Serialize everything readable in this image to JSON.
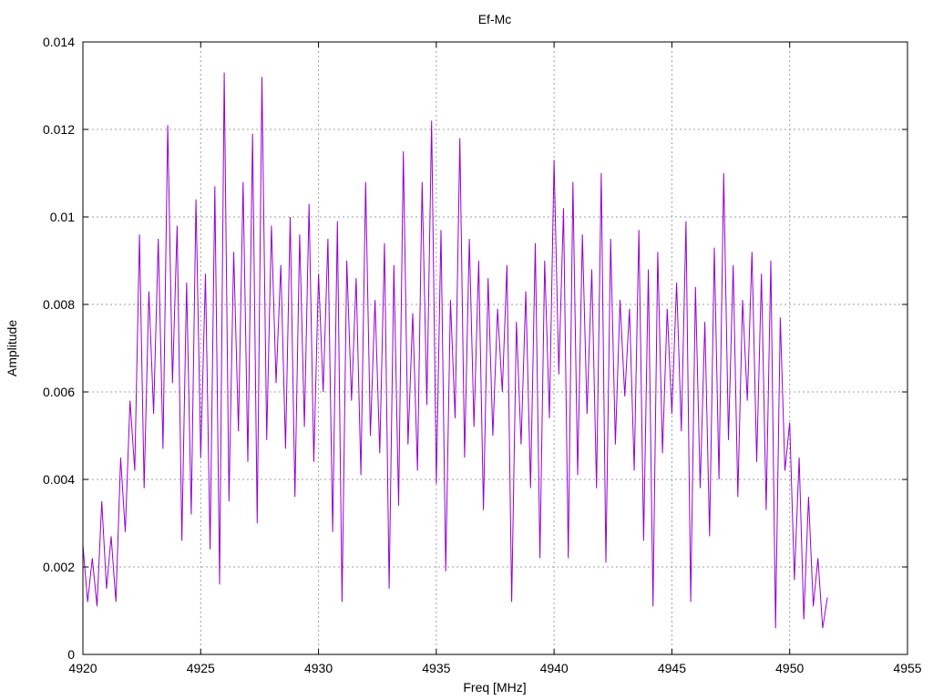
{
  "chart_data": {
    "type": "line",
    "title": "Ef-Mc",
    "xlabel": "Freq [MHz]",
    "ylabel": "Amplitude",
    "xlim": [
      4920,
      4955
    ],
    "ylim": [
      0,
      0.014
    ],
    "xticks": [
      4920,
      4925,
      4930,
      4935,
      4940,
      4945,
      4950,
      4955
    ],
    "xtick_labels": [
      "4920",
      "4925",
      "4930",
      "4935",
      "4940",
      "4945",
      "4950",
      "4955"
    ],
    "yticks": [
      0,
      0.002,
      0.004,
      0.006,
      0.008,
      0.01,
      0.012,
      0.014
    ],
    "ytick_labels": [
      "0",
      "0.002",
      "0.004",
      "0.006",
      "0.008",
      "0.01",
      "0.012",
      "0.014"
    ],
    "grid": true,
    "legend": "none",
    "series": [
      {
        "name": "Ef-Mc",
        "color": "#9400d3",
        "x_start": 4920,
        "x_step": 0.2,
        "values": [
          0.0025,
          0.0012,
          0.0022,
          0.0011,
          0.0035,
          0.0015,
          0.0027,
          0.0012,
          0.0045,
          0.0028,
          0.0058,
          0.0042,
          0.0096,
          0.0038,
          0.0083,
          0.0055,
          0.0095,
          0.0047,
          0.0121,
          0.0062,
          0.0098,
          0.0026,
          0.0085,
          0.0032,
          0.0104,
          0.0045,
          0.0087,
          0.0024,
          0.0107,
          0.0016,
          0.0133,
          0.0035,
          0.0092,
          0.0051,
          0.0108,
          0.0044,
          0.0119,
          0.003,
          0.0132,
          0.0049,
          0.0098,
          0.0062,
          0.0089,
          0.0047,
          0.01,
          0.0036,
          0.0096,
          0.0052,
          0.0103,
          0.0044,
          0.0087,
          0.006,
          0.0095,
          0.0028,
          0.0099,
          0.0012,
          0.009,
          0.0058,
          0.0086,
          0.0041,
          0.0108,
          0.005,
          0.0081,
          0.0046,
          0.0094,
          0.0015,
          0.0089,
          0.0034,
          0.0115,
          0.0048,
          0.0078,
          0.0042,
          0.0108,
          0.0057,
          0.0122,
          0.0039,
          0.0097,
          0.0019,
          0.0081,
          0.0054,
          0.0118,
          0.0045,
          0.0095,
          0.0052,
          0.009,
          0.0033,
          0.0086,
          0.005,
          0.0079,
          0.006,
          0.0089,
          0.0012,
          0.0076,
          0.0048,
          0.0083,
          0.0038,
          0.0094,
          0.0022,
          0.009,
          0.0054,
          0.0113,
          0.0064,
          0.0102,
          0.0022,
          0.0108,
          0.0041,
          0.0096,
          0.0055,
          0.0088,
          0.0038,
          0.011,
          0.0021,
          0.0095,
          0.0048,
          0.0081,
          0.0059,
          0.0079,
          0.0042,
          0.0097,
          0.0026,
          0.0088,
          0.0011,
          0.0092,
          0.0046,
          0.0079,
          0.0055,
          0.0085,
          0.0051,
          0.0099,
          0.0012,
          0.0084,
          0.0038,
          0.0076,
          0.0027,
          0.0093,
          0.004,
          0.011,
          0.0049,
          0.0089,
          0.0036,
          0.0081,
          0.0058,
          0.0092,
          0.0044,
          0.0087,
          0.0033,
          0.009,
          0.0006,
          0.0077,
          0.0042,
          0.0053,
          0.0017,
          0.0045,
          0.0008,
          0.0036,
          0.0011,
          0.0022,
          0.0006,
          0.0013
        ]
      }
    ]
  }
}
